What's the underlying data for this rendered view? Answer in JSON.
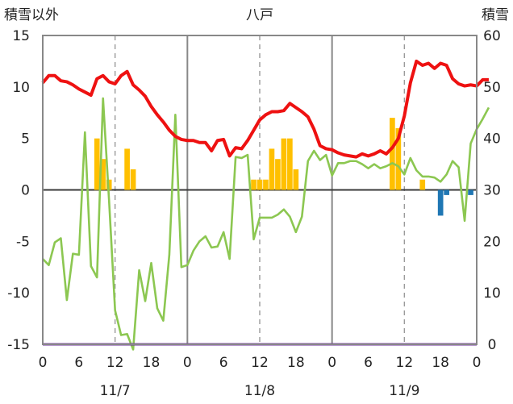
{
  "chart_data": {
    "type": "bar+line",
    "title": "八戸",
    "left_axis_title": "積雪以外",
    "right_axis_title": "積雪",
    "left_ylim": [
      -15,
      15
    ],
    "right_ylim": [
      0,
      60
    ],
    "left_ticks": [
      "15",
      "10",
      "5",
      "0",
      "-5",
      "-10",
      "-15"
    ],
    "right_ticks": [
      "60",
      "50",
      "40",
      "30",
      "20",
      "10",
      "0"
    ],
    "x_ticks": [
      "0",
      "6",
      "12",
      "18",
      "0",
      "6",
      "12",
      "18",
      "0",
      "6",
      "12",
      "18",
      "0"
    ],
    "date_labels": [
      "11/7",
      "11/8",
      "11/9"
    ],
    "x_range_hours": [
      0,
      72
    ],
    "colors": {
      "temperature": "#ee1111",
      "line2": "#8cc751",
      "precip": "#ffc000",
      "snow_change": "#1f77b4",
      "snow_depth": "#7030a0",
      "grid": "#9a9a9a",
      "axis": "#888888"
    },
    "temperature": [
      10.4,
      11.1,
      11.1,
      10.6,
      10.5,
      10.2,
      9.8,
      9.5,
      9.2,
      10.8,
      11.1,
      10.5,
      10.3,
      11.1,
      11.5,
      10.2,
      9.7,
      9.1,
      8.1,
      7.3,
      6.6,
      5.8,
      5.2,
      4.9,
      4.8,
      4.8,
      4.6,
      4.6,
      3.8,
      4.8,
      4.9,
      3.3,
      4.1,
      4.0,
      4.8,
      5.8,
      6.8,
      7.3,
      7.6,
      7.6,
      7.7,
      8.4,
      8.0,
      7.6,
      7.1,
      5.9,
      4.3,
      4.0,
      3.9,
      3.6,
      3.4,
      3.3,
      3.2,
      3.5,
      3.3,
      3.5,
      3.8,
      3.5,
      4.1,
      5.0,
      7.2,
      10.4,
      12.5,
      12.1,
      12.3,
      11.8,
      12.3,
      12.1,
      10.8,
      10.3,
      10.1,
      10.2,
      10.1,
      10.7,
      10.7
    ],
    "line2": [
      -6.7,
      -7.3,
      -5.1,
      -4.7,
      -10.7,
      -6.2,
      -6.3,
      5.6,
      -7.4,
      -8.5,
      8.9,
      -1.0,
      -11.7,
      -14.1,
      -14.0,
      -15.5,
      -7.8,
      -10.8,
      -7.1,
      -11.5,
      -12.7,
      -6.3,
      7.3,
      -7.5,
      -7.3,
      -5.9,
      -5.0,
      -4.5,
      -5.6,
      -5.5,
      -4.1,
      -6.7,
      3.2,
      3.1,
      3.4,
      -4.8,
      -2.7,
      -2.7,
      -2.7,
      -2.4,
      -1.9,
      -2.6,
      -4.1,
      -2.6,
      2.8,
      3.8,
      2.9,
      3.4,
      1.4,
      2.6,
      2.6,
      2.8,
      2.8,
      2.5,
      2.1,
      2.5,
      2.1,
      2.3,
      2.6,
      2.3,
      1.5,
      3.1,
      1.9,
      1.3,
      1.3,
      1.2,
      0.8,
      1.5,
      2.8,
      2.2,
      -3.0,
      4.5,
      5.9,
      6.9,
      8.0
    ],
    "precip": [
      {
        "hour": 9,
        "value": 5
      },
      {
        "hour": 10,
        "value": 3
      },
      {
        "hour": 11,
        "value": 1
      },
      {
        "hour": 14,
        "value": 4
      },
      {
        "hour": 15,
        "value": 2
      },
      {
        "hour": 35,
        "value": 1
      },
      {
        "hour": 36,
        "value": 1
      },
      {
        "hour": 37,
        "value": 1
      },
      {
        "hour": 38,
        "value": 4
      },
      {
        "hour": 39,
        "value": 3
      },
      {
        "hour": 40,
        "value": 5
      },
      {
        "hour": 41,
        "value": 5
      },
      {
        "hour": 42,
        "value": 2
      },
      {
        "hour": 58,
        "value": 7
      },
      {
        "hour": 59,
        "value": 6
      },
      {
        "hour": 63,
        "value": 1
      }
    ],
    "snow_change": [
      {
        "hour": 66,
        "value": -2.5
      },
      {
        "hour": 67,
        "value": -0.5
      },
      {
        "hour": 71,
        "value": -0.5
      }
    ],
    "snow_depth": [
      0,
      0
    ]
  }
}
